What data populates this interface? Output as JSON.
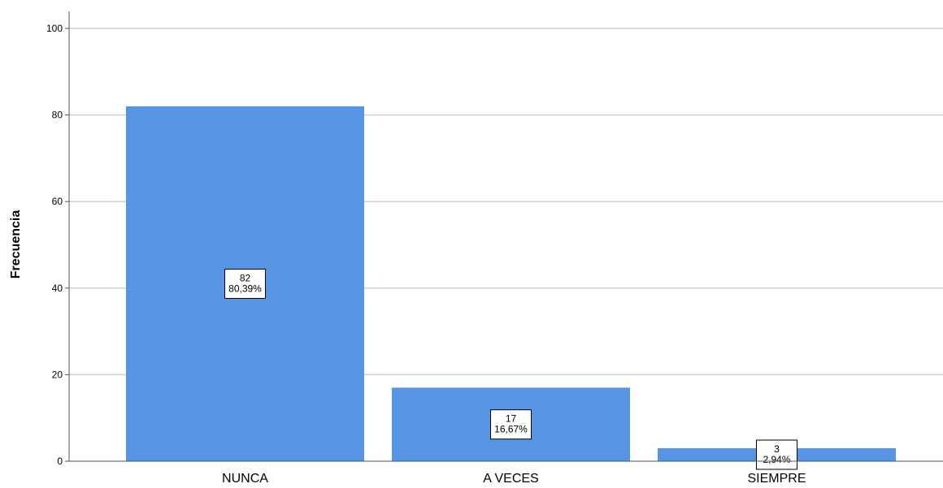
{
  "chart_data": {
    "type": "bar",
    "ylabel": "Frecuencia",
    "xlabel": "",
    "ylim": [
      0,
      100
    ],
    "yticks": [
      0,
      20,
      40,
      60,
      80,
      100
    ],
    "grid": true,
    "categories": [
      "NUNCA",
      "A VECES",
      "SIEMPRE"
    ],
    "values": [
      82,
      17,
      3
    ],
    "percent_labels": [
      "80,39%",
      "16,67%",
      "2,94%"
    ],
    "bar_color": "#5595e3"
  }
}
